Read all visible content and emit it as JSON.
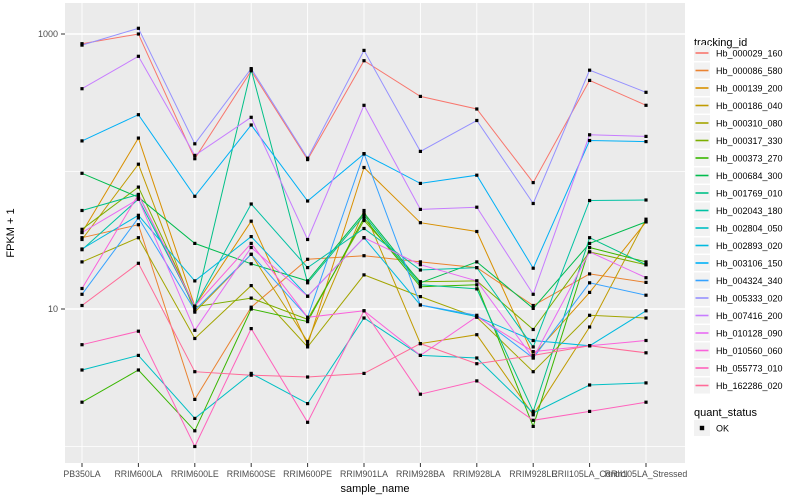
{
  "colors": {
    "panel_bg": "#EBEBEB",
    "grid": "#FFFFFF",
    "tick_label": "#4D4D4D",
    "axis_title": "#000000",
    "legend_key_bg": "#F2F2F2",
    "point": "#000000",
    "background": "#FFFFFF"
  },
  "chart_data": {
    "type": "line",
    "title": "",
    "xlabel": "sample_name",
    "ylabel": "FPKM + 1",
    "y_scale": "log10",
    "y_major_ticks": [
      10,
      1000
    ],
    "y_minor_gridlines": [
      1,
      100
    ],
    "ylim": [
      0.78,
      1680
    ],
    "grid": true,
    "legend_position": "right",
    "legend_title": "tracking_id",
    "point_legend": {
      "title": "quant_status",
      "items": [
        {
          "label": "OK",
          "marker": "black-square"
        }
      ]
    },
    "categories": [
      "PB350LA",
      "RRIM600LA",
      "RRIM600LE",
      "RRIM600SE",
      "RRIM600PE",
      "RRIM901LA",
      "RRIM928BA",
      "RRIM928LA",
      "RRIM928LE",
      "RRII105LA_Control",
      "RRII105LA_Stressed"
    ],
    "series": [
      {
        "name": "Hb_000029_160",
        "color": "#F8766D",
        "values": [
          850,
          1000,
          124,
          540,
          122,
          640,
          352,
          285,
          83,
          460,
          303
        ]
      },
      {
        "name": "Hb_000086_580",
        "color": "#EA8331",
        "values": [
          33,
          41,
          2.2,
          10.3,
          23,
          24.4,
          22,
          20,
          10.6,
          18,
          15.6
        ]
      },
      {
        "name": "Hb_000139_200",
        "color": "#D89000",
        "values": [
          36,
          175,
          10.5,
          43.5,
          5.5,
          107,
          42.4,
          36.6,
          4.6,
          13.2,
          43
        ]
      },
      {
        "name": "Hb_000186_040",
        "color": "#C09B00",
        "values": [
          32,
          113,
          9.5,
          25,
          5.8,
          52,
          5.6,
          6.5,
          1.7,
          7.4,
          45
        ]
      },
      {
        "name": "Hb_000310_080",
        "color": "#A3A500",
        "values": [
          22,
          33,
          6.1,
          14.8,
          5.3,
          17.7,
          12.3,
          8.7,
          3.5,
          9,
          8.6
        ]
      },
      {
        "name": "Hb_000317_330",
        "color": "#7CAE00",
        "values": [
          38,
          77,
          10.4,
          12,
          8.4,
          44,
          15.8,
          16,
          7.1,
          26,
          21
        ]
      },
      {
        "name": "Hb_000373_270",
        "color": "#39B600",
        "values": [
          2.1,
          3.6,
          1.3,
          10,
          8.1,
          46,
          14.5,
          15,
          1.4,
          28,
          22
        ]
      },
      {
        "name": "Hb_000684_300",
        "color": "#00BB4E",
        "values": [
          97,
          65,
          30,
          21.3,
          16,
          50,
          15.5,
          22,
          10.1,
          30,
          43
        ]
      },
      {
        "name": "Hb_001769_010",
        "color": "#00C087",
        "values": [
          52,
          68,
          10.2,
          550,
          15.5,
          48,
          15,
          14,
          1.8,
          33,
          21
        ]
      },
      {
        "name": "Hb_002043_180",
        "color": "#00C1A3",
        "values": [
          27,
          63,
          10.5,
          58,
          20,
          38.5,
          19.2,
          20,
          5.3,
          61.5,
          62
        ]
      },
      {
        "name": "Hb_002804_050",
        "color": "#00BFC4",
        "values": [
          3.6,
          4.6,
          1.6,
          3.4,
          2.05,
          8.6,
          4.6,
          4.4,
          1.75,
          2.8,
          2.9
        ]
      },
      {
        "name": "Hb_002893_020",
        "color": "#00BAE0",
        "values": [
          27.3,
          48,
          16,
          33.6,
          12.4,
          33,
          10.7,
          8.8,
          5.9,
          5.4,
          9.7
        ]
      },
      {
        "name": "Hb_003106_150",
        "color": "#00B0F6",
        "values": [
          167,
          259,
          66,
          218,
          61,
          134,
          82,
          94,
          19.8,
          168,
          165
        ]
      },
      {
        "name": "Hb_004324_340",
        "color": "#35A2FF",
        "values": [
          12.8,
          46,
          9.8,
          25,
          8.7,
          135,
          10.7,
          9,
          4.4,
          15.5,
          12.6
        ]
      },
      {
        "name": "Hb_005333_020",
        "color": "#9590FF",
        "values": [
          830,
          1100,
          159,
          560,
          125,
          760,
          140,
          235,
          58.5,
          545,
          377
        ]
      },
      {
        "name": "Hb_007416_200",
        "color": "#C77CFF",
        "values": [
          400,
          688,
          131,
          248,
          32,
          303,
          53,
          55,
          12.8,
          185,
          180
        ]
      },
      {
        "name": "Hb_010128_090",
        "color": "#E76BF3",
        "values": [
          36,
          63,
          7.0,
          28,
          12.4,
          33,
          21,
          16,
          4.4,
          26,
          16.9
        ]
      },
      {
        "name": "Hb_010560_060",
        "color": "#FA62DB",
        "values": [
          14.1,
          68,
          10.5,
          30,
          8.7,
          9.7,
          4.6,
          8.8,
          4.9,
          5.4,
          5.9
        ]
      },
      {
        "name": "Hb_055773_010",
        "color": "#FF62BC",
        "values": [
          5.5,
          6.9,
          1.0,
          7.2,
          1.5,
          9.7,
          2.4,
          3.0,
          1.55,
          1.8,
          2.1
        ]
      },
      {
        "name": "Hb_162286_020",
        "color": "#FF6A98",
        "values": [
          10.6,
          21.5,
          3.5,
          3.3,
          3.2,
          3.4,
          5.6,
          4.0,
          4.6,
          5.4,
          4.8
        ]
      }
    ]
  }
}
